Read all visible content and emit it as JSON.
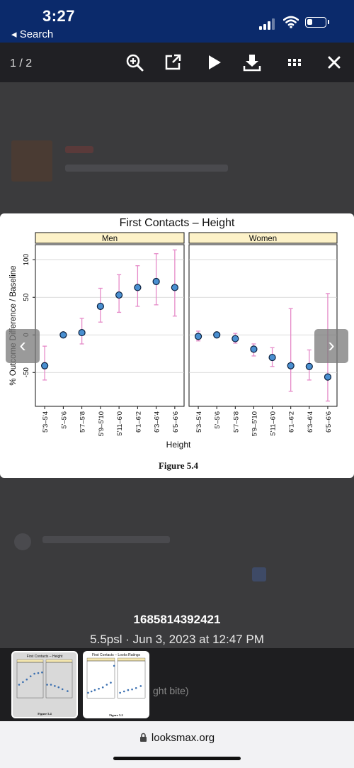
{
  "status_bar": {
    "time": "3:27",
    "back_label": "◂ Search",
    "battery_level": 0.3
  },
  "toolbar": {
    "counter": "1 / 2",
    "icons": [
      "zoom-in-icon",
      "open-external-icon",
      "play-icon",
      "download-icon",
      "grid-icon",
      "close-icon"
    ]
  },
  "nav": {
    "prev": "‹",
    "next": "›"
  },
  "figure_caption": "Figure 5.4",
  "chart_data": {
    "type": "scatter",
    "title": "First Contacts – Height",
    "xlabel": "Height",
    "ylabel": "% Outcome Difference / Baseline",
    "ylim": [
      -95,
      120
    ],
    "yticks": [
      -50,
      0,
      50,
      100
    ],
    "grid": true,
    "categories": [
      "5'3–5'4",
      "5'–5'6",
      "5'7–5'8",
      "5'9–5'10",
      "5'11–6'0",
      "6'1–6'2",
      "6'3–6'4",
      "6'5–6'6"
    ],
    "panels": [
      {
        "name": "Men",
        "values": [
          -41,
          0,
          3,
          38,
          53,
          63,
          71,
          63
        ],
        "err_low": [
          -60,
          0,
          -12,
          17,
          30,
          38,
          40,
          25
        ],
        "err_high": [
          -15,
          0,
          22,
          62,
          80,
          92,
          108,
          113
        ]
      },
      {
        "name": "Women",
        "values": [
          -2,
          0,
          -5,
          -19,
          -30,
          -41,
          -42,
          -56
        ],
        "err_low": [
          -8,
          0,
          -11,
          -28,
          -42,
          -75,
          -60,
          -88
        ],
        "err_high": [
          5,
          0,
          2,
          -12,
          -17,
          35,
          -20,
          55
        ]
      }
    ]
  },
  "caption": {
    "title": "1685814392421",
    "meta": "5.5psl · Jun 3, 2023 at 12:47 PM"
  },
  "thumbnails": [
    {
      "label": "First Contacts – Height",
      "caption": "Figure 5.4"
    },
    {
      "label": "First Contacts – Looks Ratings",
      "caption": "Figure 5.2"
    }
  ],
  "background_text": "ght bite)",
  "url_bar": {
    "url": "looksmax.org"
  }
}
